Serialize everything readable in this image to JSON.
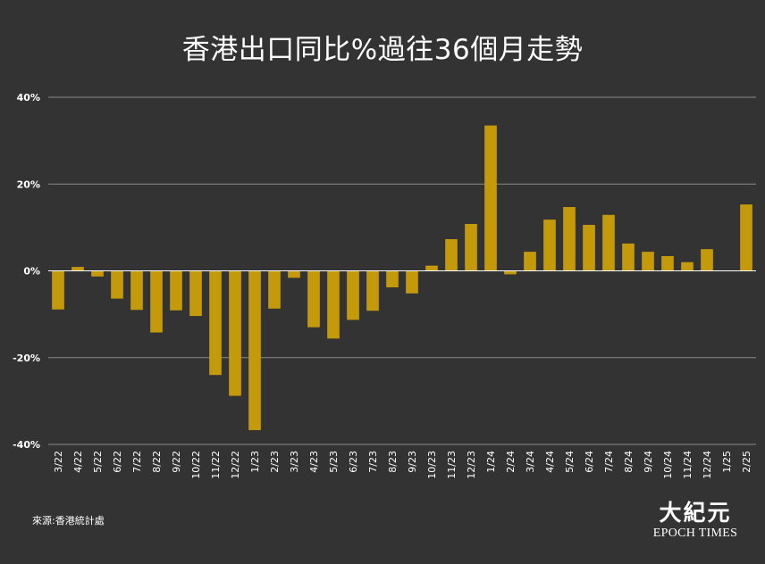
{
  "source": "來源:香港統計處",
  "logo": {
    "chinese": "大紀元",
    "english": "EPOCH TIMES"
  },
  "colors": {
    "background": "#333333",
    "bar": "#c49a0a",
    "grid": "#8a8a8a",
    "zero_line": "#ffffff",
    "text": "#ffffff"
  },
  "chart_data": {
    "type": "bar",
    "title": "香港出口同比%過往36個月走勢",
    "xlabel": "",
    "ylabel": "",
    "ylim": [
      -40,
      40
    ],
    "yticks": [
      40,
      20,
      0,
      -20,
      -40
    ],
    "ytick_labels": [
      "40%",
      "20%",
      "0%",
      "-20%",
      "-40%"
    ],
    "grid": true,
    "legend": "none",
    "categories": [
      "3/22",
      "4/22",
      "5/22",
      "6/22",
      "7/22",
      "8/22",
      "9/22",
      "10/22",
      "11/22",
      "12/22",
      "1/23",
      "2/23",
      "3/23",
      "4/23",
      "5/23",
      "6/23",
      "7/23",
      "8/23",
      "9/23",
      "10/23",
      "11/23",
      "12/23",
      "1/24",
      "2/24",
      "3/24",
      "4/24",
      "5/24",
      "6/24",
      "7/24",
      "8/24",
      "9/24",
      "10/24",
      "11/24",
      "12/24",
      "1/25",
      "2/25"
    ],
    "values": [
      -8.9,
      0.9,
      -1.3,
      -6.4,
      -9.0,
      -14.2,
      -9.1,
      -10.4,
      -24.0,
      -28.8,
      -36.7,
      -8.7,
      -1.6,
      -13.0,
      -15.6,
      -11.3,
      -9.2,
      -3.8,
      -5.2,
      1.2,
      7.3,
      10.8,
      33.5,
      -0.8,
      4.4,
      11.8,
      14.7,
      10.6,
      12.9,
      6.3,
      4.4,
      3.4,
      2.0,
      5.0,
      0.0,
      15.3
    ]
  }
}
